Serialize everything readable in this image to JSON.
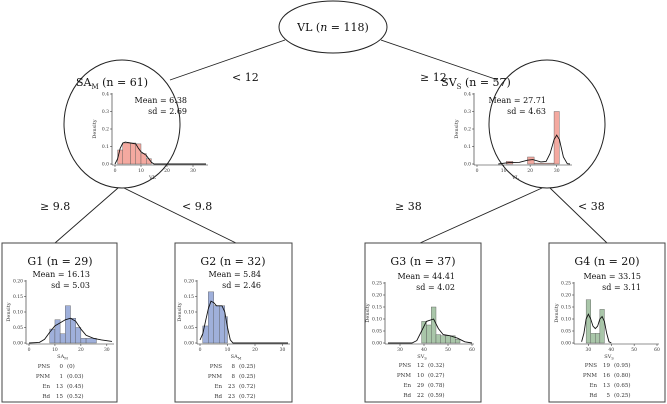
{
  "root": {
    "label": "VL (",
    "n_sym": "n",
    "n_rest": " = 118)"
  },
  "edges": {
    "root_left": "< 12",
    "root_right": "≥ 12",
    "left_g1": "≥ 9.8",
    "left_g2": "< 9.8",
    "right_g3": "≥ 38",
    "right_g4": "< 38"
  },
  "nodes": [
    {
      "id": "sam",
      "title_main": "SA",
      "title_sub": "M",
      "title_n": " (n = 61)",
      "mean": "Mean = 6.38",
      "sd": "sd = 2.69"
    },
    {
      "id": "svs",
      "title_main": "SV",
      "title_sub": "S",
      "title_n": " (n = 57)",
      "mean": "Mean = 27.71",
      "sd": "sd = 4.63"
    },
    {
      "id": "g1",
      "title_main": "G1",
      "title_sub": "",
      "title_n": " (n = 29)",
      "mean": "Mean = 16.13",
      "sd": "sd = 5.03",
      "table": [
        [
          "PNS",
          "0",
          "(0)"
        ],
        [
          "PNM",
          "1",
          "(0.03)"
        ],
        [
          "En",
          "13",
          "(0.45)"
        ],
        [
          "Rd",
          "15",
          "(0.52)"
        ]
      ]
    },
    {
      "id": "g2",
      "title_main": "G2",
      "title_sub": "",
      "title_n": " (n = 32)",
      "mean": "Mean = 5.84",
      "sd": "sd = 2.46",
      "table": [
        [
          "PNS",
          "8",
          "(0.25)"
        ],
        [
          "PNM",
          "8",
          "(0.25)"
        ],
        [
          "En",
          "23",
          "(0.72)"
        ],
        [
          "Rd",
          "23",
          "(0.72)"
        ]
      ]
    },
    {
      "id": "g3",
      "title_main": "G3",
      "title_sub": "",
      "title_n": " (n = 37)",
      "mean": "Mean = 44.41",
      "sd": "sd = 4.02",
      "table": [
        [
          "PNS",
          "12",
          "(0.32)"
        ],
        [
          "PNM",
          "10",
          "(0.27)"
        ],
        [
          "En",
          "29",
          "(0.78)"
        ],
        [
          "Rd",
          "22",
          "(0.59)"
        ]
      ]
    },
    {
      "id": "g4",
      "title_main": "G4",
      "title_sub": "",
      "title_n": " (n = 20)",
      "mean": "Mean = 33.15",
      "sd": "sd = 3.11",
      "table": [
        [
          "PNS",
          "19",
          "(0.95)"
        ],
        [
          "PNM",
          "16",
          "(0.80)"
        ],
        [
          "En",
          "13",
          "(0.65)"
        ],
        [
          "Rd",
          "5",
          "(0.25)"
        ]
      ]
    }
  ],
  "colors": {
    "sam": "#f4a9a0",
    "svs": "#f4a9a0",
    "g1": "#9fb0db",
    "g2": "#9fb0db",
    "g3": "#a9c6a9",
    "g4": "#a9c6a9",
    "curve": "#111111"
  },
  "chart_data": [
    {
      "id": "sam",
      "type": "bar",
      "xlabel": "VL",
      "xlabel_sub": "",
      "ylabel": "Density",
      "xlim": [
        0,
        35
      ],
      "ylim": [
        0,
        0.4
      ],
      "xticks": [
        0,
        10,
        20,
        30
      ],
      "yticks": [
        "0.0",
        "0.1",
        "0.2",
        "0.3",
        "0.4"
      ],
      "bins": [
        [
          1,
          3,
          0.08
        ],
        [
          3,
          6,
          0.12
        ],
        [
          6,
          8,
          0.12
        ],
        [
          8,
          10,
          0.115
        ],
        [
          10,
          12,
          0.06
        ],
        [
          12,
          14,
          0.03
        ]
      ],
      "curve": [
        [
          0,
          0
        ],
        [
          1,
          0.03
        ],
        [
          2,
          0.09
        ],
        [
          3,
          0.12
        ],
        [
          4,
          0.125
        ],
        [
          6,
          0.12
        ],
        [
          8,
          0.115
        ],
        [
          9,
          0.09
        ],
        [
          10,
          0.07
        ],
        [
          12,
          0.05
        ],
        [
          13,
          0.03
        ],
        [
          14,
          0.01
        ],
        [
          15,
          0
        ],
        [
          35,
          0
        ]
      ]
    },
    {
      "id": "svs",
      "type": "bar",
      "xlabel": "VL",
      "xlabel_sub": "",
      "ylabel": "Density",
      "xlim": [
        0,
        35
      ],
      "ylim": [
        0,
        0.4
      ],
      "xticks": [
        0,
        10,
        20,
        30
      ],
      "yticks": [
        "0.0",
        "0.1",
        "0.2",
        "0.3",
        "0.4"
      ],
      "bins": [
        [
          11,
          13.5,
          0.015
        ],
        [
          19,
          21.5,
          0.04
        ],
        [
          21.5,
          29,
          0.005
        ],
        [
          29,
          31,
          0.3
        ]
      ],
      "curve": [
        [
          8,
          0
        ],
        [
          12,
          0.008
        ],
        [
          16,
          0.01
        ],
        [
          19,
          0.022
        ],
        [
          21,
          0.025
        ],
        [
          24,
          0.012
        ],
        [
          26,
          0.015
        ],
        [
          27.5,
          0.06
        ],
        [
          29,
          0.14
        ],
        [
          30,
          0.165
        ],
        [
          31,
          0.14
        ],
        [
          32.5,
          0.04
        ],
        [
          34,
          0.002
        ],
        [
          35,
          0
        ]
      ]
    },
    {
      "id": "g1",
      "type": "bar",
      "xlabel": "SA",
      "xlabel_sub": "M",
      "ylabel": "Density",
      "xlim": [
        0,
        32
      ],
      "ylim": [
        0,
        0.2
      ],
      "xticks": [
        0,
        10,
        20,
        30
      ],
      "yticks": [
        "0.00",
        "0.05",
        "0.10",
        "0.15",
        "0.20"
      ],
      "bins": [
        [
          8,
          10,
          0.045
        ],
        [
          10,
          12,
          0.075
        ],
        [
          12,
          14,
          0.03
        ],
        [
          14,
          16,
          0.12
        ],
        [
          16,
          18,
          0.08
        ],
        [
          18,
          20,
          0.05
        ],
        [
          20,
          22,
          0.015
        ],
        [
          22,
          26,
          0.015
        ]
      ],
      "curve": [
        [
          0,
          0
        ],
        [
          4,
          0.002
        ],
        [
          6,
          0.012
        ],
        [
          8,
          0.035
        ],
        [
          10,
          0.055
        ],
        [
          12,
          0.065
        ],
        [
          14,
          0.075
        ],
        [
          16,
          0.08
        ],
        [
          18,
          0.07
        ],
        [
          20,
          0.045
        ],
        [
          22,
          0.025
        ],
        [
          25,
          0.015
        ],
        [
          28,
          0.01
        ],
        [
          32,
          0.005
        ]
      ]
    },
    {
      "id": "g2",
      "type": "bar",
      "xlabel": "SA",
      "xlabel_sub": "M",
      "ylabel": "Density",
      "xlim": [
        0,
        32
      ],
      "ylim": [
        0,
        0.2
      ],
      "xticks": [
        0,
        10,
        20,
        30
      ],
      "yticks": [
        "0.00",
        "0.05",
        "0.10",
        "0.15",
        "0.20"
      ],
      "bins": [
        [
          1,
          3,
          0.055
        ],
        [
          3,
          5,
          0.165
        ],
        [
          5,
          7,
          0.12
        ],
        [
          7,
          9,
          0.12
        ],
        [
          9,
          10,
          0.085
        ]
      ],
      "curve": [
        [
          0,
          0.01
        ],
        [
          1,
          0.03
        ],
        [
          2,
          0.07
        ],
        [
          3,
          0.11
        ],
        [
          4,
          0.135
        ],
        [
          5,
          0.13
        ],
        [
          6,
          0.12
        ],
        [
          7,
          0.12
        ],
        [
          8,
          0.12
        ],
        [
          9,
          0.1
        ],
        [
          10,
          0.05
        ],
        [
          11,
          0.01
        ],
        [
          12,
          0
        ],
        [
          32,
          0
        ]
      ]
    },
    {
      "id": "g3",
      "type": "bar",
      "xlabel": "SV",
      "xlabel_sub": "S",
      "ylabel": "Density",
      "xlim": [
        25,
        60
      ],
      "ylim": [
        0,
        0.25
      ],
      "xticks": [
        30,
        40,
        50,
        60
      ],
      "yticks": [
        "0.00",
        "0.05",
        "0.10",
        "0.15",
        "0.20",
        "0.25"
      ],
      "bins": [
        [
          39,
          41,
          0.09
        ],
        [
          41,
          43,
          0.075
        ],
        [
          43,
          45,
          0.15
        ],
        [
          45,
          47,
          0.035
        ],
        [
          47,
          49,
          0.03
        ],
        [
          49,
          51,
          0.03
        ],
        [
          51,
          53,
          0.03
        ],
        [
          53,
          55,
          0.015
        ]
      ],
      "curve": [
        [
          25,
          0
        ],
        [
          35,
          0
        ],
        [
          37,
          0.01
        ],
        [
          39,
          0.05
        ],
        [
          41,
          0.09
        ],
        [
          44,
          0.1
        ],
        [
          46,
          0.06
        ],
        [
          48,
          0.035
        ],
        [
          51,
          0.03
        ],
        [
          54,
          0.02
        ],
        [
          57,
          0.005
        ],
        [
          60,
          0
        ]
      ]
    },
    {
      "id": "g4",
      "type": "bar",
      "xlabel": "SV",
      "xlabel_sub": "S",
      "ylabel": "Density",
      "xlim": [
        25,
        60
      ],
      "ylim": [
        0,
        0.25
      ],
      "xticks": [
        30,
        40,
        50,
        60
      ],
      "yticks": [
        "0.00",
        "0.05",
        "0.10",
        "0.15",
        "0.20",
        "0.25"
      ],
      "bins": [
        [
          29,
          31,
          0.18
        ],
        [
          31,
          33,
          0.04
        ],
        [
          33,
          35,
          0.04
        ],
        [
          35,
          37,
          0.14
        ]
      ],
      "curve": [
        [
          27,
          0.005
        ],
        [
          28,
          0.04
        ],
        [
          29,
          0.1
        ],
        [
          30,
          0.12
        ],
        [
          31,
          0.1
        ],
        [
          32,
          0.07
        ],
        [
          33,
          0.06
        ],
        [
          34,
          0.07
        ],
        [
          35,
          0.1
        ],
        [
          36,
          0.11
        ],
        [
          37,
          0.09
        ],
        [
          38,
          0.04
        ],
        [
          39,
          0.005
        ],
        [
          40,
          0
        ]
      ]
    }
  ]
}
